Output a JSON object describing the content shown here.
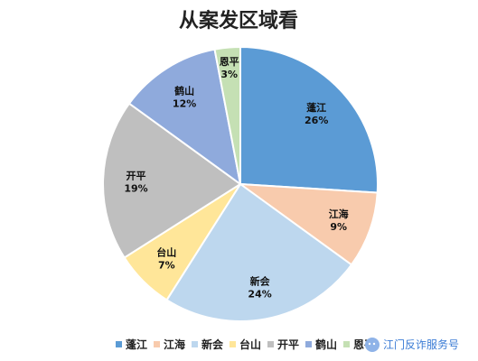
{
  "chart_data": {
    "type": "pie",
    "title": "从案发区域看",
    "categories": [
      "蓬江",
      "江海",
      "新会",
      "台山",
      "开平",
      "鹤山",
      "恩平"
    ],
    "values": [
      26,
      9,
      24,
      7,
      19,
      12,
      3
    ],
    "value_labels": [
      "26%",
      "9%",
      "24%",
      "7%",
      "19%",
      "12%",
      "3%"
    ],
    "colors": [
      "#5b9bd5",
      "#f8cbad",
      "#bdd7ee",
      "#ffe699",
      "#bfbfbf",
      "#8faadc",
      "#c5e0b4"
    ],
    "legend_position": "bottom"
  },
  "watermark": {
    "text": "江门反诈服务号",
    "icon": "wechat-icon"
  }
}
